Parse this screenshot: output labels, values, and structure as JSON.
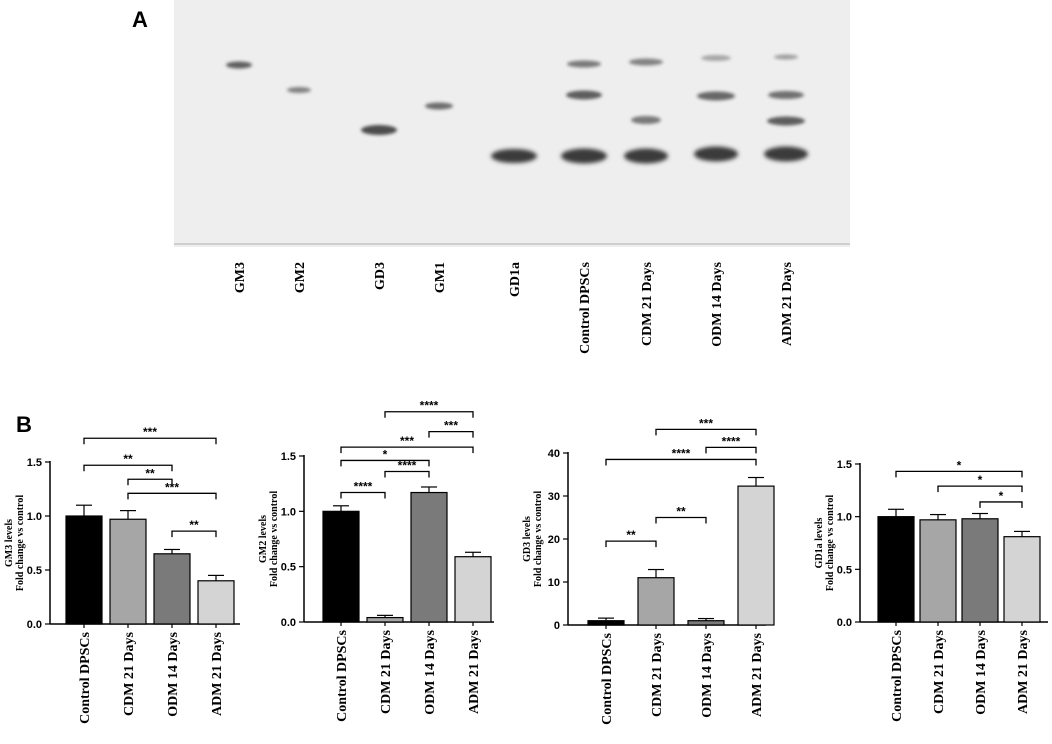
{
  "panel_a": {
    "letter": "A",
    "lanes": [
      "GM3",
      "GM2",
      "GD3",
      "GM1",
      "GD1a",
      "Control DPSCs",
      "CDM 21 Days",
      "ODM 14 Days",
      "ADM 21 Days"
    ]
  },
  "panel_b": {
    "letter": "B"
  },
  "colors": {
    "bar_fills": [
      "#000000",
      "#a6a6a6",
      "#7a7a7a",
      "#d4d4d4"
    ],
    "band": "#3a3a3a"
  },
  "chart_data": [
    {
      "type": "bar",
      "categories": [
        "Control DPSCs",
        "CDM 21 Days",
        "ODM 14 Days",
        "ADM 21 Days"
      ],
      "values": [
        1.0,
        0.97,
        0.65,
        0.4
      ],
      "errors": [
        0.1,
        0.08,
        0.04,
        0.05
      ],
      "ylabel_line1": "GM3 levels",
      "ylabel_line2": "Fold change vs control",
      "ylim": [
        0,
        1.5
      ],
      "yticks": [
        "0.0",
        "0.5",
        "1.0",
        "1.5"
      ],
      "significance": [
        {
          "from": 0,
          "to": 3,
          "y": 1.72,
          "label": "***"
        },
        {
          "from": 0,
          "to": 2,
          "y": 1.47,
          "label": "**"
        },
        {
          "from": 1,
          "to": 2,
          "y": 1.34,
          "label": "**"
        },
        {
          "from": 1,
          "to": 3,
          "y": 1.21,
          "label": "***"
        },
        {
          "from": 2,
          "to": 3,
          "y": 0.86,
          "label": "**"
        }
      ]
    },
    {
      "type": "bar",
      "categories": [
        "Control DPSCs",
        "CDM 21 Days",
        "ODM 14 Days",
        "ADM 21 Days"
      ],
      "values": [
        1.0,
        0.04,
        1.17,
        0.59
      ],
      "errors": [
        0.05,
        0.02,
        0.05,
        0.04
      ],
      "ylabel_line1": "GM2 levels",
      "ylabel_line2": "Fold change vs control",
      "ylim": [
        0,
        1.5
      ],
      "yticks": [
        "0.0",
        "0.5",
        "1.0",
        "1.5"
      ],
      "significance": [
        {
          "from": 1,
          "to": 3,
          "y": 1.9,
          "label": "****"
        },
        {
          "from": 2,
          "to": 3,
          "y": 1.72,
          "label": "***"
        },
        {
          "from": 0,
          "to": 3,
          "y": 1.58,
          "label": "***"
        },
        {
          "from": 0,
          "to": 2,
          "y": 1.46,
          "label": "*"
        },
        {
          "from": 1,
          "to": 2,
          "y": 1.36,
          "label": "****"
        },
        {
          "from": 0,
          "to": 1,
          "y": 1.17,
          "label": "****"
        }
      ]
    },
    {
      "type": "bar",
      "categories": [
        "Control DPSCs",
        "CDM 21 Days",
        "ODM 14 Days",
        "ADM 21 Days"
      ],
      "values": [
        1.0,
        11.0,
        1.0,
        32.3
      ],
      "errors": [
        0.6,
        1.9,
        0.5,
        2.0
      ],
      "ylabel_line1": "GD3 levels",
      "ylabel_line2": "Fold change vs control",
      "ylim": [
        0,
        40
      ],
      "yticks": [
        "0",
        "10",
        "20",
        "30",
        "40"
      ],
      "significance": [
        {
          "from": 1,
          "to": 3,
          "y": 45.5,
          "label": "***"
        },
        {
          "from": 2,
          "to": 3,
          "y": 41.3,
          "label": "****"
        },
        {
          "from": 0,
          "to": 3,
          "y": 38.5,
          "label": "****"
        },
        {
          "from": 1,
          "to": 2,
          "y": 25.0,
          "label": "**"
        },
        {
          "from": 0,
          "to": 1,
          "y": 19.5,
          "label": "**"
        }
      ]
    },
    {
      "type": "bar",
      "categories": [
        "Control DPSCs",
        "CDM 21 Days",
        "ODM 14 Days",
        "ADM 21 Days"
      ],
      "values": [
        1.0,
        0.97,
        0.98,
        0.81
      ],
      "errors": [
        0.07,
        0.05,
        0.05,
        0.05
      ],
      "ylabel_line1": "GD1a levels",
      "ylabel_line2": "Fold change vs control",
      "ylim": [
        0,
        1.5
      ],
      "yticks": [
        "0.0",
        "0.5",
        "1.0",
        "1.5"
      ],
      "significance": [
        {
          "from": 0,
          "to": 3,
          "y": 1.43,
          "label": "*"
        },
        {
          "from": 1,
          "to": 3,
          "y": 1.29,
          "label": "*"
        },
        {
          "from": 2,
          "to": 3,
          "y": 1.14,
          "label": "*"
        }
      ]
    }
  ]
}
